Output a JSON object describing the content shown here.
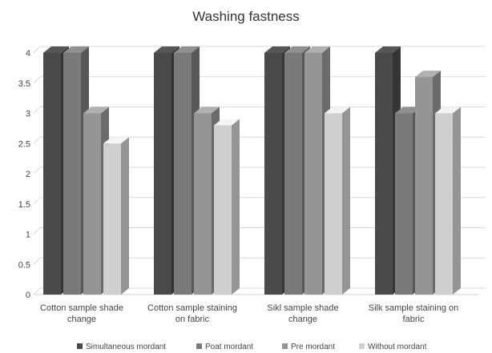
{
  "chart_data": {
    "type": "bar",
    "style": "3d-clustered-column",
    "title": "Washing fastness",
    "xlabel": "",
    "ylabel": "",
    "ylim": [
      0,
      4
    ],
    "yticks": [
      "0",
      "0.5",
      "1",
      "1.5",
      "2",
      "2.5",
      "3",
      "3.5",
      "4"
    ],
    "grid": true,
    "legend_position": "bottom",
    "categories": [
      [
        "Cotton sample shade",
        "change"
      ],
      [
        "Cotton sample staining",
        "on fabric"
      ],
      [
        "Sikl sample shade",
        "change"
      ],
      [
        "Silk sample staining on",
        "fabric"
      ]
    ],
    "series": [
      {
        "name": "Simultaneous mordant",
        "color": "#4a4a4a",
        "values": [
          4,
          4,
          4,
          4
        ]
      },
      {
        "name": "Poat mordant",
        "color": "#7a7a7a",
        "values": [
          4,
          4,
          4,
          3
        ]
      },
      {
        "name": "Pre mordant",
        "color": "#959595",
        "values": [
          3,
          3,
          4,
          3.6
        ]
      },
      {
        "name": "Without mordant",
        "color": "#cfcfcf",
        "values": [
          2.5,
          2.8,
          3,
          3
        ]
      }
    ]
  }
}
